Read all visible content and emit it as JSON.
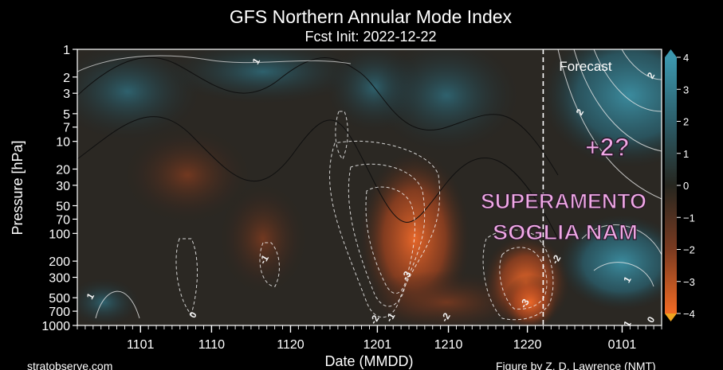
{
  "chart_data": {
    "type": "heatmap",
    "title": "GFS Northern Annular Mode Index",
    "subtitle": "Fcst Init: 2022-12-22",
    "xlabel": "Date (MMDD)",
    "ylabel": "Pressure [hPa]",
    "x_ticks": [
      {
        "label": "1101",
        "date": "2022-11-01"
      },
      {
        "label": "1110",
        "date": "2022-11-10"
      },
      {
        "label": "1120",
        "date": "2022-11-20"
      },
      {
        "label": "1201",
        "date": "2022-12-01"
      },
      {
        "label": "1210",
        "date": "2022-12-10"
      },
      {
        "label": "1220",
        "date": "2022-12-20"
      },
      {
        "label": "0101",
        "date": "2023-01-01"
      }
    ],
    "x_range": [
      "2022-10-24",
      "2023-01-06"
    ],
    "y_ticks": [
      1,
      2,
      3,
      5,
      7,
      10,
      20,
      30,
      50,
      70,
      100,
      200,
      300,
      500,
      700,
      1000
    ],
    "y_range": [
      1,
      1000
    ],
    "y_scale": "log",
    "y_inverted": true,
    "forecast_start": "2022-12-22",
    "forecast_label": "Forecast",
    "colorbar": {
      "ticks": [
        4,
        3,
        2,
        1,
        0,
        -1,
        -2,
        -3,
        -4
      ],
      "tick_labels": [
        "4",
        "3",
        "2",
        "1",
        "0",
        "−1",
        "−2",
        "−3",
        "−4"
      ],
      "range": [
        -4,
        4
      ],
      "positive_color": "#3a8fa5",
      "negative_color": "#e8632a",
      "neutral_color": "#2a2a26"
    },
    "regions": [
      {
        "date": "2022-11-12",
        "pressure": 30,
        "value": -1.0
      },
      {
        "date": "2022-11-22",
        "pressure": 250,
        "value": -1.5
      },
      {
        "date": "2022-12-06",
        "pressure": 200,
        "value": -3.5
      },
      {
        "date": "2022-12-19",
        "pressure": 400,
        "value": -4.0
      },
      {
        "date": "2022-12-31",
        "pressure": 3,
        "value": 3.5
      },
      {
        "date": "2023-01-02",
        "pressure": 300,
        "value": 2.0
      },
      {
        "date": "2022-10-27",
        "pressure": 500,
        "value": 1.0
      }
    ],
    "contour_labels": [
      {
        "text": "1",
        "date": "2022-11-16",
        "pressure": 1.4
      },
      {
        "text": "-1",
        "date": "2022-11-17",
        "pressure": 200
      },
      {
        "text": "0",
        "date": "2022-11-08",
        "pressure": 800
      },
      {
        "text": "1",
        "date": "2022-10-26",
        "pressure": 500
      },
      {
        "text": "-2",
        "date": "2022-12-01",
        "pressure": 900
      },
      {
        "text": "-1",
        "date": "2022-12-03",
        "pressure": 850
      },
      {
        "text": "-3",
        "date": "2022-12-05",
        "pressure": 300
      },
      {
        "text": "-2",
        "date": "2022-12-10",
        "pressure": 850
      },
      {
        "text": "-3",
        "date": "2022-12-20",
        "pressure": 600
      },
      {
        "text": "-2",
        "date": "2022-12-24",
        "pressure": 200
      },
      {
        "text": "2",
        "date": "2022-12-27",
        "pressure": 5
      },
      {
        "text": "2",
        "date": "2023-01-05",
        "pressure": 2
      },
      {
        "text": "1",
        "date": "2023-01-02",
        "pressure": 330
      },
      {
        "text": "1",
        "date": "2023-01-02",
        "pressure": 1000
      },
      {
        "text": "0",
        "date": "2023-01-05",
        "pressure": 900
      }
    ]
  },
  "overlay": {
    "annotation_plus": "+2?",
    "annotation_line1": "SUPERAMENTO",
    "annotation_line2": "SOGLIA NAM",
    "annotation_color": "#f0a8e6"
  },
  "credits": {
    "left": "stratobserve.com",
    "right": "Figure by Z. D. Lawrence (NMT)"
  }
}
